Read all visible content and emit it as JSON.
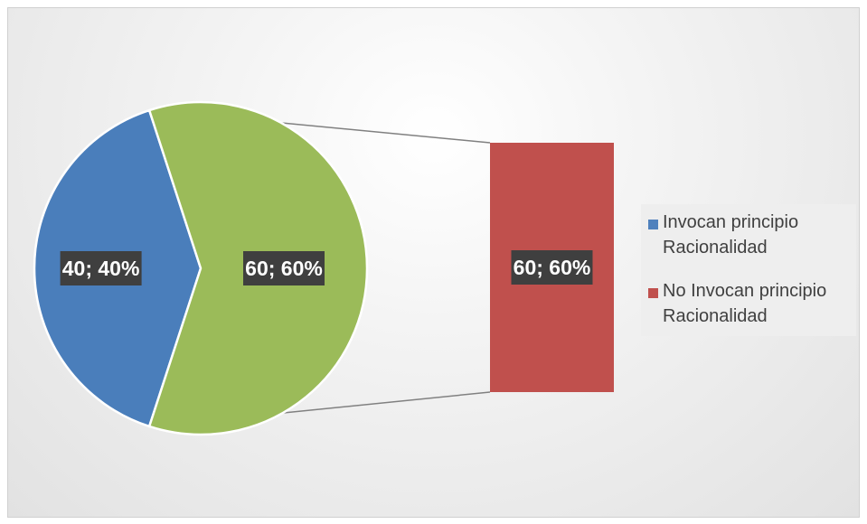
{
  "chart_data": {
    "type": "pie",
    "subtype": "bar-of-pie",
    "slices": [
      {
        "label": "Invocan principio Racionalidad",
        "value": 40,
        "percent": 40,
        "color": "#4a7ebb",
        "data_label": "40; 40%"
      },
      {
        "label": "No Invocan principio Racionalidad",
        "value": 60,
        "percent": 60,
        "color": "#9bbb59",
        "data_label": "60; 60%"
      }
    ],
    "secondary_bar": {
      "segments": [
        {
          "label": "No Invocan principio Racionalidad",
          "value": 60,
          "percent": 60,
          "color": "#c0504d",
          "data_label": "60; 60%"
        }
      ]
    },
    "legend": {
      "position": "right",
      "entries": [
        {
          "label": "Invocan principio Racionalidad",
          "color": "#4f81bd"
        },
        {
          "label": "No Invocan principio Racionalidad",
          "color": "#c0504d"
        }
      ]
    },
    "title": "",
    "data_label_background": "#3f3f3f",
    "data_label_color": "#ffffff",
    "connector_color": "#808080"
  }
}
